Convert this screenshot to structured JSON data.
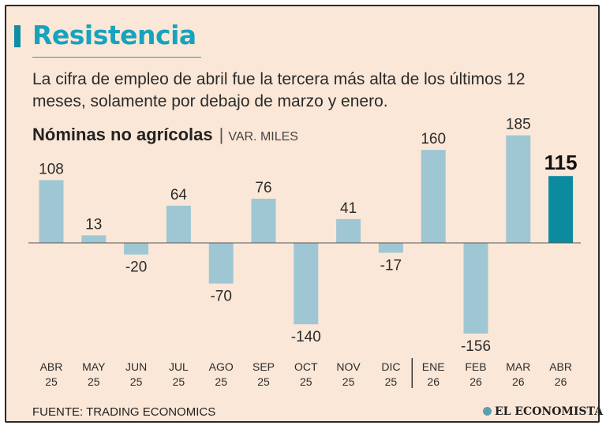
{
  "title": "Resistencia",
  "subtitle": "La cifra de empleo de abril fue la tercera más alta de los últimos 12 meses, solamente por debajo de marzo y enero.",
  "source": "FUENTE: TRADING ECONOMICS",
  "brand": "EL ECONOMISTA",
  "colors": {
    "accent": "#17a3bd",
    "bar": "#9fc7d3",
    "bar_highlight": "#0b8aa0",
    "background": "#fbe7d7"
  },
  "chart_data": {
    "type": "bar",
    "title": "Nóminas no agrícolas",
    "ylabel": "VAR. MILES",
    "categories": [
      "ABR 25",
      "MAY 25",
      "JUN 25",
      "JUL 25",
      "AGO 25",
      "SEP 25",
      "OCT 25",
      "NOV 25",
      "DIC 25",
      "ENE 26",
      "FEB 26",
      "MAR 26",
      "ABR 26"
    ],
    "months": [
      "ABR",
      "MAY",
      "JUN",
      "JUL",
      "AGO",
      "SEP",
      "OCT",
      "NOV",
      "DIC",
      "ENE",
      "FEB",
      "MAR",
      "ABR"
    ],
    "years": [
      "25",
      "25",
      "25",
      "25",
      "25",
      "25",
      "25",
      "25",
      "25",
      "26",
      "26",
      "26",
      "26"
    ],
    "values": [
      108,
      13,
      -20,
      64,
      -70,
      76,
      -140,
      41,
      -17,
      160,
      -156,
      185,
      115
    ],
    "highlight_index": 12,
    "year_divider_after_index": 8,
    "ylim": [
      -160,
      190
    ],
    "grid": false,
    "legend": "none"
  }
}
